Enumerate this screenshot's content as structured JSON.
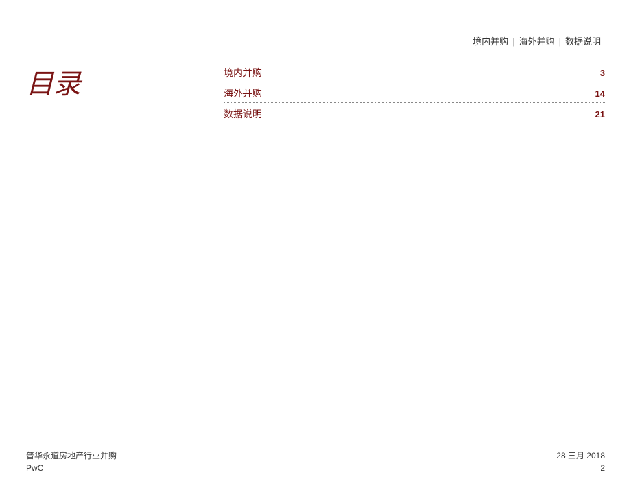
{
  "colors": {
    "accent": "#7a1414",
    "text": "#333333",
    "line": "#555555",
    "dots": "#888888",
    "background": "#ffffff"
  },
  "header": {
    "nav_items": [
      "境内并购",
      "海外并购",
      "数据说明"
    ],
    "nav_separator": "|"
  },
  "title": "目录",
  "toc": {
    "entries": [
      {
        "label": "境内并购",
        "page": "3"
      },
      {
        "label": "海外并购",
        "page": "14"
      },
      {
        "label": "数据说明",
        "page": "21"
      }
    ]
  },
  "footer": {
    "left_line1": "普华永道房地产行业并购",
    "left_line2": "PwC",
    "right_line1": "28 三月 2018",
    "right_line2": "2"
  }
}
